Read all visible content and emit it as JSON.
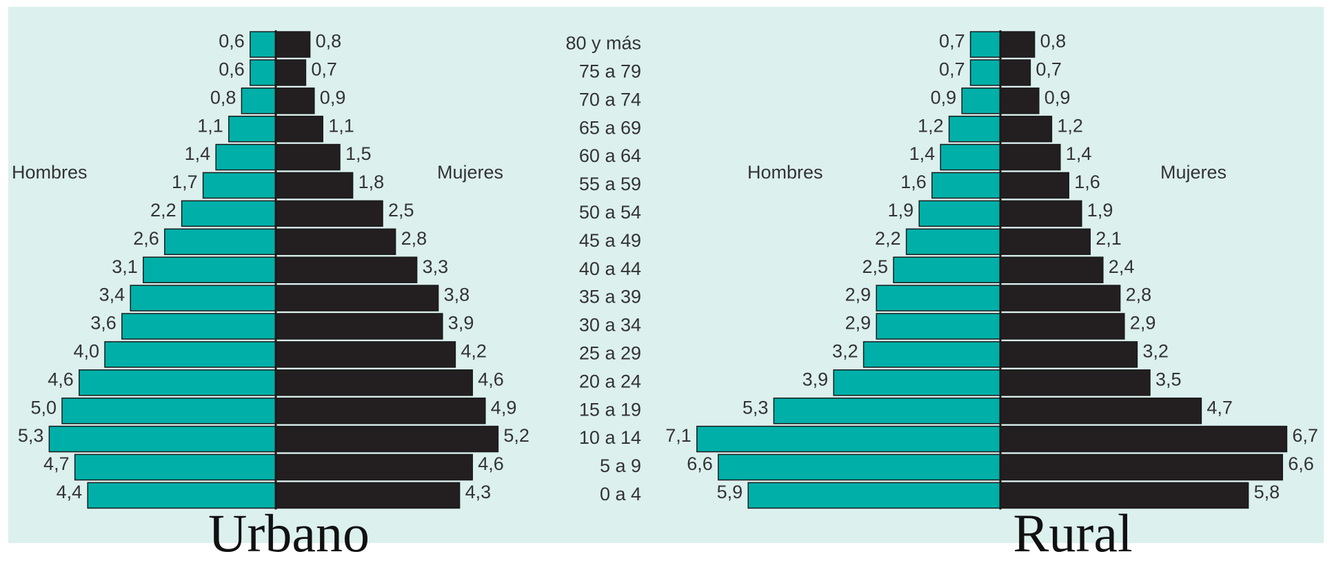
{
  "chart_data": [
    {
      "type": "pyramid",
      "title": "Urbano",
      "categories": [
        "80 y más",
        "75 a 79",
        "70 a 74",
        "65 a 69",
        "60 a 64",
        "55 a 59",
        "50 a 54",
        "45 a 49",
        "40 a 44",
        "35 a 39",
        "30 a 34",
        "25 a 29",
        "20 a 24",
        "15 a 19",
        "10 a 14",
        "5 a 9",
        "0 a 4"
      ],
      "series": [
        {
          "name": "Hombres",
          "color": "#00b0a8",
          "values": [
            0.6,
            0.6,
            0.8,
            1.1,
            1.4,
            1.7,
            2.2,
            2.6,
            3.1,
            3.4,
            3.6,
            4.0,
            4.6,
            5.0,
            5.3,
            4.7,
            4.4
          ],
          "value_labels": [
            "0,6",
            "0,6",
            "0,8",
            "1,1",
            "1,4",
            "1,7",
            "2,2",
            "2,6",
            "3,1",
            "3,4",
            "3,6",
            "4,0",
            "4,6",
            "5,0",
            "5,3",
            "4,7",
            "4,4"
          ]
        },
        {
          "name": "Mujeres",
          "color": "#231f20",
          "values": [
            0.8,
            0.7,
            0.9,
            1.1,
            1.5,
            1.8,
            2.5,
            2.8,
            3.3,
            3.8,
            3.9,
            4.2,
            4.6,
            4.9,
            5.2,
            4.6,
            4.3
          ],
          "value_labels": [
            "0,8",
            "0,7",
            "0,9",
            "1,1",
            "1,5",
            "1,8",
            "2,5",
            "2,8",
            "3,3",
            "3,8",
            "3,9",
            "4,2",
            "4,6",
            "4,9",
            "5,2",
            "4,6",
            "4,3"
          ]
        }
      ]
    },
    {
      "type": "pyramid",
      "title": "Rural",
      "series": [
        {
          "name": "Hombres",
          "color": "#00b0a8",
          "values": [
            0.7,
            0.7,
            0.9,
            1.2,
            1.4,
            1.6,
            1.9,
            2.2,
            2.5,
            2.9,
            2.9,
            3.2,
            3.9,
            5.3,
            7.1,
            6.6,
            5.9
          ],
          "value_labels": [
            "0,7",
            "0,7",
            "0,9",
            "1,2",
            "1,4",
            "1,6",
            "1,9",
            "2,2",
            "2,5",
            "2,9",
            "2,9",
            "3,2",
            "3,9",
            "5,3",
            "7,1",
            "6,6",
            "5,9"
          ]
        },
        {
          "name": "Mujeres",
          "color": "#231f20",
          "values": [
            0.8,
            0.7,
            0.9,
            1.2,
            1.4,
            1.6,
            1.9,
            2.1,
            2.4,
            2.8,
            2.9,
            3.2,
            3.5,
            4.7,
            6.7,
            6.6,
            5.8
          ],
          "value_labels": [
            "0,8",
            "0,7",
            "0,9",
            "1,2",
            "1,4",
            "1,6",
            "1,9",
            "2,1",
            "2,4",
            "2,8",
            "2,9",
            "3,2",
            "3,5",
            "4,7",
            "6,7",
            "6,6",
            "5,8"
          ]
        }
      ]
    }
  ]
}
